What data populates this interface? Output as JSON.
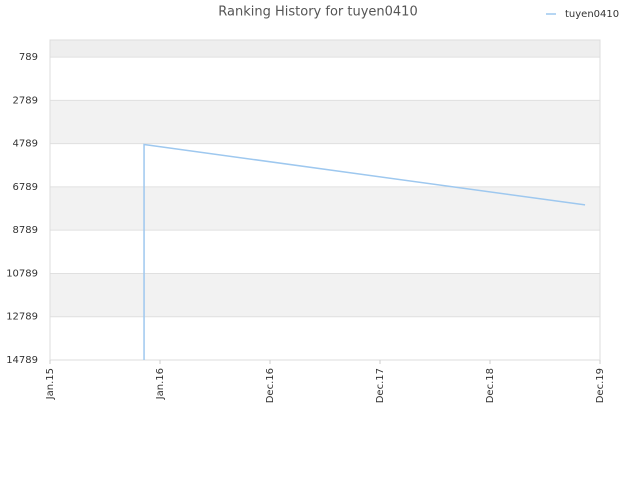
{
  "chart_data": {
    "type": "line",
    "title": "Ranking History for tuyen0410",
    "x": [
      0.855,
      0.855,
      4.864
    ],
    "xlim": [
      0,
      5
    ],
    "xticks": [
      {
        "value": 0,
        "label": "Jan.15"
      },
      {
        "value": 1,
        "label": "Jan.16"
      },
      {
        "value": 2,
        "label": "Dec.16"
      },
      {
        "value": 3,
        "label": "Dec.17"
      },
      {
        "value": 4,
        "label": "Dec.18"
      },
      {
        "value": 5,
        "label": "Dec.19"
      }
    ],
    "series": [
      {
        "name": "tuyen0410",
        "color": "#9ec8ef",
        "values": [
          14789,
          4830,
          7620
        ]
      }
    ],
    "ylim": [
      14789,
      0
    ],
    "yticks": [
      789,
      2789,
      4789,
      6789,
      8789,
      10789,
      12789,
      14789
    ],
    "inverted_y": true,
    "grid": true,
    "legend": "top-right"
  }
}
